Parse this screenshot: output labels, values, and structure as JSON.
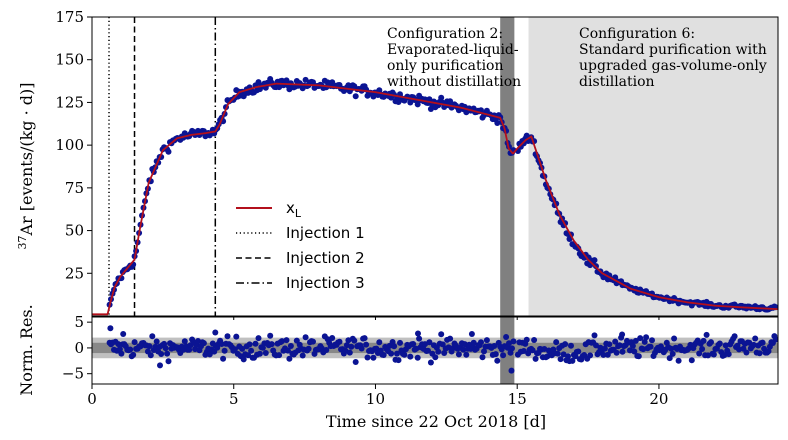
{
  "chart_data": [
    {
      "type": "scatter",
      "panel": "main",
      "xlabel": "Time since 22 Oct 2018 [d]",
      "ylabel_sup": "37",
      "ylabel": "Ar [events/(kg · d)]",
      "xlim": [
        0,
        24.2
      ],
      "ylim": [
        0,
        175
      ],
      "xticks": [
        0,
        5,
        10,
        15,
        20
      ],
      "yticks": [
        25,
        50,
        75,
        100,
        125,
        150,
        175
      ],
      "injections": [
        {
          "name": "Injection 1",
          "x": 0.6,
          "style": "dotted"
        },
        {
          "name": "Injection 2",
          "x": 1.5,
          "style": "dashed"
        },
        {
          "name": "Injection 3",
          "x": 4.35,
          "style": "dashdot"
        }
      ],
      "bands": [
        {
          "x0": 14.4,
          "x1": 14.9,
          "color": "#808080"
        },
        {
          "x0": 15.4,
          "x1": 24.2,
          "color": "#e0e0e0"
        }
      ],
      "annotations": [
        {
          "lines": [
            "Configuration 2:",
            "Evaporated-liquid-",
            "only purification",
            "without distillation"
          ],
          "x": 10.25
        },
        {
          "lines": [
            "Configuration 6:",
            "Standard purification with",
            "upgraded gas-volume-only",
            "distillation"
          ],
          "x": 17.0
        }
      ],
      "legend": [
        {
          "label": "x",
          "sub": "L",
          "style": "line"
        },
        {
          "label": "Injection 1",
          "style": "dotted"
        },
        {
          "label": "Injection 2",
          "style": "dashed"
        },
        {
          "label": "Injection 3",
          "style": "dashdot"
        }
      ],
      "model_curve": {
        "name": "x_L",
        "x": [
          0,
          0.55,
          0.65,
          0.8,
          1.0,
          1.2,
          1.5,
          1.7,
          2.0,
          2.5,
          3.0,
          3.5,
          4.0,
          4.35,
          4.5,
          4.8,
          5.2,
          5.8,
          6.5,
          8,
          10,
          12,
          13,
          14.4,
          14.55,
          14.7,
          14.85,
          15.0,
          15.3,
          15.5,
          16,
          16.5,
          17,
          17.5,
          18,
          19,
          20,
          21,
          22,
          23,
          24.2
        ],
        "y": [
          1,
          1,
          8,
          17,
          23,
          27,
          33,
          52,
          78,
          97,
          104,
          106,
          107,
          108,
          112,
          124,
          131,
          134,
          136,
          135,
          131,
          125,
          122,
          116,
          110,
          98,
          95,
          98,
          103,
          105,
          80,
          59,
          44,
          33,
          25,
          16,
          11,
          8,
          6,
          5,
          4
        ]
      },
      "measurements": {
        "name": "Measured",
        "color": "#0b1493",
        "noise_sd": 1.4
      }
    },
    {
      "type": "scatter",
      "panel": "residuals",
      "ylabel": "Norm. Res.",
      "xlim": [
        0,
        24.2
      ],
      "ylim": [
        -7,
        6
      ],
      "yticks": [
        -5,
        0,
        5
      ],
      "bands": [
        {
          "y0": -2,
          "y1": 2,
          "color": "#c0c0c0"
        },
        {
          "y0": -1,
          "y1": 1,
          "color": "#888888"
        }
      ],
      "color": "#0b1493"
    }
  ]
}
